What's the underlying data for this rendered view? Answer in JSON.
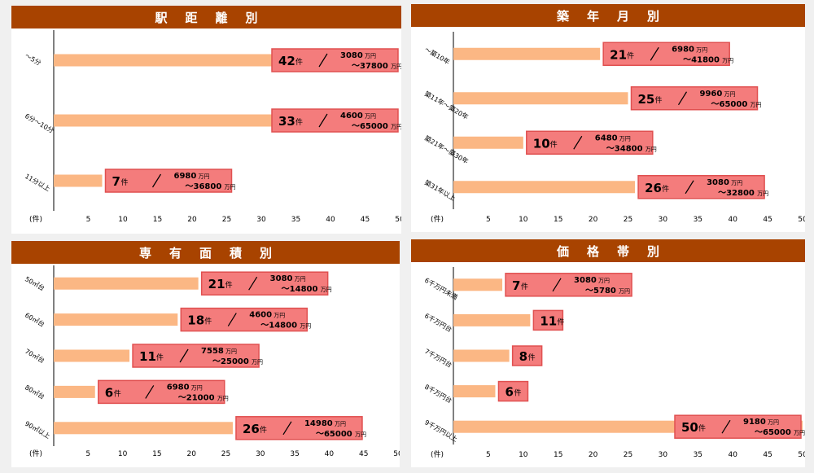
{
  "colors": {
    "header": "#a84300",
    "bar": "#fbb784",
    "label_fill": "#f47c7c",
    "label_border": "#e05050",
    "text": "#000000"
  },
  "axis_unit": "(件)",
  "chart_data": [
    {
      "type": "bar",
      "orientation": "horizontal",
      "title": "駅距離別",
      "xlim": [
        0,
        50
      ],
      "xticks": [
        5,
        10,
        15,
        20,
        25,
        30,
        35,
        40,
        45,
        50
      ],
      "categories": [
        "～5分",
        "6分～10分",
        "11分以上"
      ],
      "values": [
        42,
        33,
        7
      ],
      "price_min": [
        "3080",
        "4600",
        "6980"
      ],
      "price_max": [
        "37800",
        "65000",
        "36800"
      ]
    },
    {
      "type": "bar",
      "orientation": "horizontal",
      "title": "築年月別",
      "xlim": [
        0,
        50
      ],
      "xticks": [
        5,
        10,
        15,
        20,
        25,
        30,
        35,
        40,
        45,
        50
      ],
      "categories": [
        "～築10年",
        "築11年～築20年",
        "築21年～築30年",
        "築31年以上"
      ],
      "values": [
        21,
        25,
        10,
        26
      ],
      "price_min": [
        "6980",
        "9960",
        "6480",
        "3080"
      ],
      "price_max": [
        "41800",
        "65000",
        "34800",
        "32800"
      ]
    },
    {
      "type": "bar",
      "orientation": "horizontal",
      "title": "専有面積別",
      "xlim": [
        0,
        50
      ],
      "xticks": [
        5,
        10,
        15,
        20,
        25,
        30,
        35,
        40,
        45,
        50
      ],
      "categories": [
        "50㎡台",
        "60㎡台",
        "70㎡台",
        "80㎡台",
        "90㎡以上"
      ],
      "values": [
        21,
        18,
        11,
        6,
        26
      ],
      "price_min": [
        "3080",
        "4600",
        "7558",
        "6980",
        "14980"
      ],
      "price_max": [
        "14800",
        "14800",
        "25000",
        "21000",
        "65000"
      ]
    },
    {
      "type": "bar",
      "orientation": "horizontal",
      "title": "価格帯別",
      "xlim": [
        0,
        50
      ],
      "xticks": [
        5,
        10,
        15,
        20,
        25,
        30,
        35,
        40,
        45,
        50
      ],
      "categories": [
        "6千万円未満",
        "6千万円台",
        "7千万円台",
        "8千万円台",
        "9千万円以上"
      ],
      "values": [
        7,
        11,
        8,
        6,
        50
      ],
      "price_min": [
        "3080",
        "",
        "",
        "",
        "9180"
      ],
      "price_max": [
        "5780",
        "",
        "",
        "",
        "65000"
      ]
    }
  ],
  "labels": {
    "count_unit": "件",
    "price_unit": "万円",
    "range_sep": "～"
  }
}
